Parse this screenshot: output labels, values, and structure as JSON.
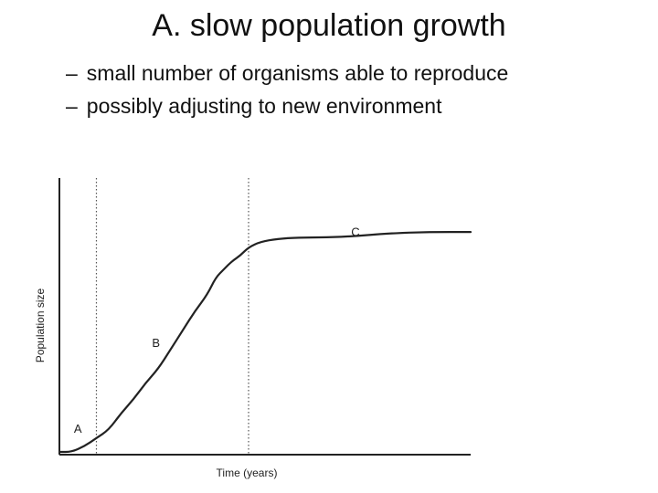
{
  "slide": {
    "title": "A. slow population growth",
    "bullets": [
      {
        "dash": "–",
        "text": "small number of organisms able to reproduce"
      },
      {
        "dash": "–",
        "text": "possibly adjusting to new environment"
      }
    ]
  },
  "colors": {
    "ink": "#222222",
    "divider": "#555555"
  },
  "chart_data": {
    "type": "line",
    "title": "",
    "xlabel": "Time (years)",
    "ylabel": "Population size",
    "xlim": [
      0,
      100
    ],
    "ylim": [
      0,
      100
    ],
    "grid": false,
    "phase_boundaries": [
      9,
      46
    ],
    "phase_labels": [
      {
        "label": "A",
        "x": 4.5,
        "y": 8
      },
      {
        "label": "B",
        "x": 23.5,
        "y": 39
      },
      {
        "label": "C",
        "x": 72,
        "y": 79
      }
    ],
    "series": [
      {
        "name": "",
        "x": [
          0,
          3,
          6,
          9,
          12,
          15,
          18,
          21,
          24,
          27,
          30,
          33,
          36,
          38,
          40,
          42,
          44,
          46,
          49,
          53,
          58,
          65,
          72,
          80,
          90,
          100
        ],
        "y": [
          1,
          1,
          3,
          6,
          9,
          15,
          20,
          26,
          31,
          38,
          45,
          52,
          58,
          64,
          67,
          70,
          72,
          75,
          77,
          78,
          78.5,
          78.5,
          79,
          80,
          80.5,
          80.5
        ]
      }
    ]
  }
}
